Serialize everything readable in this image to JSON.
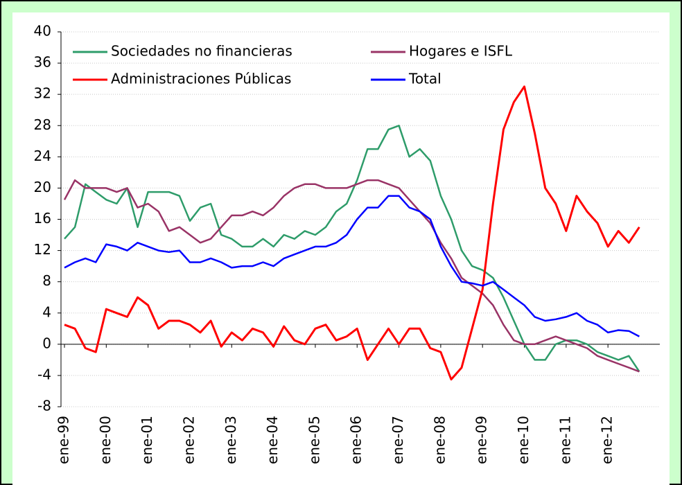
{
  "chart_data": {
    "type": "line",
    "categories": [
      "ene-99",
      null,
      null,
      null,
      "ene-00",
      null,
      null,
      null,
      "ene-01",
      null,
      null,
      null,
      "ene-02",
      null,
      null,
      null,
      "ene-03",
      null,
      null,
      null,
      "ene-04",
      null,
      null,
      null,
      "ene-05",
      null,
      null,
      null,
      "ene-06",
      null,
      null,
      null,
      "ene-07",
      null,
      null,
      null,
      "ene-08",
      null,
      null,
      null,
      "ene-09",
      null,
      null,
      null,
      "ene-10",
      null,
      null,
      null,
      "ene-11",
      null,
      null,
      null,
      "ene-12",
      null,
      null,
      null
    ],
    "series": [
      {
        "name": "Sociedades no financieras",
        "color": "#2e9c6a",
        "values": [
          13.5,
          15,
          20.5,
          19.5,
          18.5,
          18,
          20,
          15,
          19.5,
          19.5,
          19.5,
          19,
          15.8,
          17.5,
          18,
          14,
          13.5,
          12.5,
          12.5,
          13.5,
          12.5,
          14,
          13.5,
          14.5,
          14,
          15,
          17,
          18,
          21,
          25,
          25,
          27.5,
          28,
          24,
          25,
          23.5,
          19,
          16,
          12,
          10,
          9.5,
          8.5,
          6,
          3,
          0,
          -2,
          -2,
          0,
          0.5,
          0.5,
          0,
          -1,
          -1.5,
          -2,
          -1.5,
          -3.5
        ]
      },
      {
        "name": "Hogares e ISFL",
        "color": "#993366",
        "values": [
          18.5,
          21,
          20,
          20,
          20,
          19.5,
          20,
          17.5,
          18,
          17,
          14.5,
          15,
          14,
          13,
          13.5,
          15,
          16.5,
          16.5,
          17,
          16.5,
          17.5,
          19,
          20,
          20.5,
          20.5,
          20,
          20,
          20,
          20.5,
          21,
          21,
          20.5,
          20,
          18.5,
          17,
          15.5,
          13,
          11,
          8.5,
          7.5,
          6.5,
          5,
          2.5,
          0.5,
          0,
          0,
          0.5,
          1,
          0.5,
          0,
          -0.5,
          -1.5,
          -2,
          -2.5,
          -3,
          -3.5
        ]
      },
      {
        "name": "Administraciones Públicas",
        "color": "#ff0000",
        "values": [
          2.5,
          2,
          -0.5,
          -1,
          4.5,
          4,
          3.5,
          6,
          5,
          2,
          3,
          3,
          2.5,
          1.5,
          3,
          -0.3,
          1.5,
          0.5,
          2,
          1.5,
          -0.3,
          2.3,
          0.5,
          0,
          2,
          2.5,
          0.5,
          1,
          2,
          -2,
          0,
          2,
          0,
          2,
          2,
          -0.5,
          -1,
          -4.5,
          -3,
          2,
          7,
          18,
          27.5,
          31,
          33,
          27,
          20,
          18,
          14.5,
          19,
          17,
          15.5,
          12.5,
          14.5,
          13,
          15
        ]
      },
      {
        "name": "Total",
        "color": "#0000ff",
        "values": [
          9.8,
          10.5,
          11,
          10.5,
          12.8,
          12.5,
          12,
          13,
          12.5,
          12,
          11.8,
          12,
          10.5,
          10.5,
          11,
          10.5,
          9.8,
          10,
          10,
          10.5,
          10,
          11,
          11.5,
          12,
          12.5,
          12.5,
          13,
          14,
          16,
          17.5,
          17.5,
          19,
          19,
          17.5,
          17,
          16,
          12.5,
          10,
          8,
          7.8,
          7.5,
          8,
          7,
          6,
          5,
          3.5,
          3,
          3.2,
          3.5,
          4,
          3,
          2.5,
          1.5,
          1.8,
          1.7,
          1
        ]
      }
    ],
    "ylim": [
      -8,
      40
    ],
    "yticks": [
      -8,
      -4,
      0,
      4,
      8,
      12,
      16,
      20,
      24,
      28,
      32,
      36,
      40
    ],
    "grid": true,
    "legend": "top-left"
  }
}
